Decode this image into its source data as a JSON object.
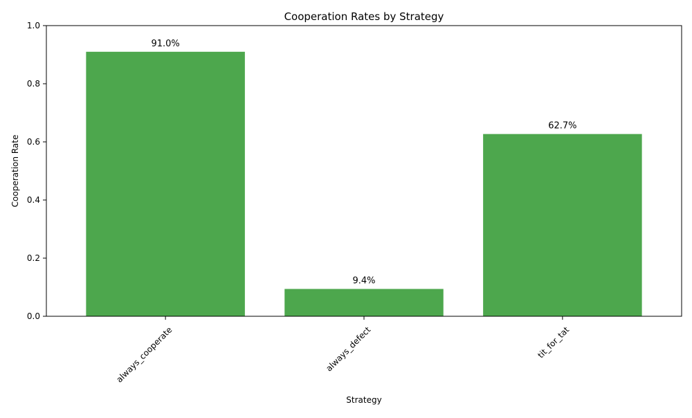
{
  "chart_data": {
    "type": "bar",
    "title": "Cooperation Rates by Strategy",
    "xlabel": "Strategy",
    "ylabel": "Cooperation Rate",
    "categories": [
      "always_cooperate",
      "always_defect",
      "tit_for_tat"
    ],
    "values": [
      0.91,
      0.094,
      0.627
    ],
    "data_labels": [
      "91.0%",
      "9.4%",
      "62.7%"
    ],
    "ylim": [
      0,
      1.0
    ],
    "yticks": [
      "0.0",
      "0.2",
      "0.4",
      "0.6",
      "0.8",
      "1.0"
    ],
    "ytick_values": [
      0,
      0.2,
      0.4,
      0.6,
      0.8,
      1.0
    ],
    "bar_color": "#4da74d",
    "grid": false,
    "legend": "none"
  }
}
